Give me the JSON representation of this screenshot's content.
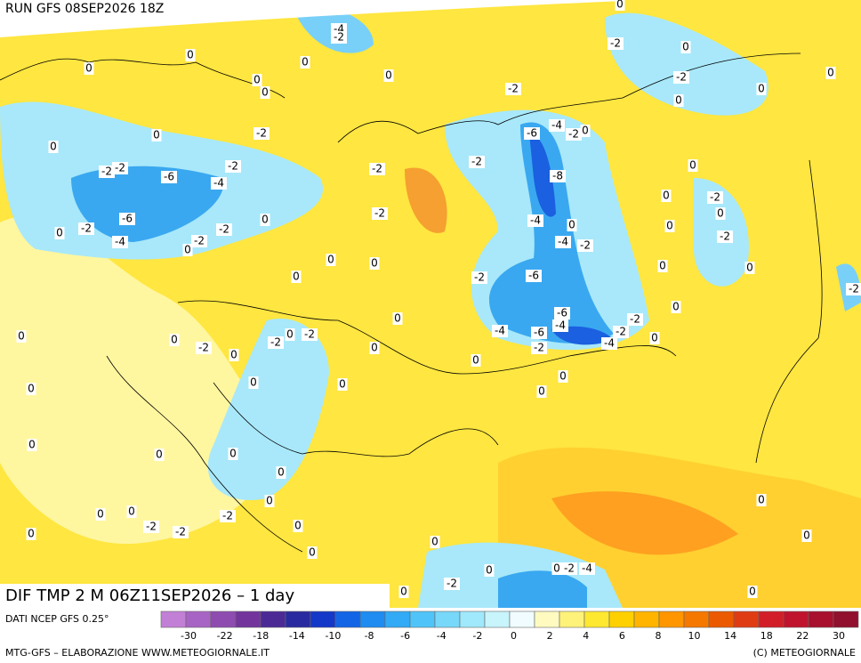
{
  "header": {
    "run": "RUN GFS 08SEP2026 18Z"
  },
  "map": {
    "title": "DIF TMP 2 M 06Z11SEP2026 – 1 day",
    "contour_labels": [
      0,
      0,
      0,
      -4,
      -2,
      0,
      0,
      0,
      0,
      -2,
      0,
      -2,
      -2,
      -6,
      -2,
      -4,
      -6,
      -2,
      0,
      -4,
      -2,
      -2,
      0,
      0,
      -2,
      -2,
      0,
      0,
      0,
      -2,
      -6,
      -4,
      -2,
      0,
      -2,
      -8,
      -4,
      0,
      -4,
      -2,
      -2,
      -6,
      -6,
      -4,
      -6,
      -4,
      -2,
      -4,
      -2,
      -2,
      0,
      0,
      -2,
      0,
      -2,
      0,
      0,
      0,
      0,
      0,
      -2,
      0,
      0,
      -2,
      0,
      0,
      0,
      -2,
      0,
      0,
      0,
      0,
      0,
      0,
      0,
      0,
      -2,
      0,
      -2,
      0,
      -2,
      0,
      0,
      0,
      0,
      0,
      0,
      0,
      0,
      0,
      -2,
      -2,
      -2,
      0,
      0,
      0,
      0,
      0,
      0,
      -2,
      -4,
      -2,
      0,
      0,
      0,
      0
    ]
  },
  "colorbar": {
    "source": "DATI NCEP GFS 0.25°",
    "colors": [
      "#c27fd6",
      "#a864c4",
      "#8e4cb0",
      "#73359c",
      "#4b2a96",
      "#2a2aa0",
      "#1438c8",
      "#1464e6",
      "#1e8cf0",
      "#32aaf5",
      "#50c4f8",
      "#78d8fa",
      "#a0e8fb",
      "#c8f4fc",
      "#f0fcff",
      "#fffbc0",
      "#fff27a",
      "#ffe830",
      "#ffd000",
      "#ffb400",
      "#ff9600",
      "#f57800",
      "#eb5a00",
      "#e03c14",
      "#d21e28",
      "#c0142e",
      "#a8102e",
      "#90102e"
    ],
    "ticks": [
      -30,
      -22,
      -18,
      -14,
      -10,
      -8,
      -6,
      -4,
      -2,
      0,
      2,
      4,
      6,
      8,
      10,
      14,
      18,
      22,
      30
    ]
  },
  "footer": {
    "left": "MTG-GFS – ELABORAZIONE WWW.METEOGIORNALE.IT",
    "right": "(C) METEOGIORNALE"
  }
}
